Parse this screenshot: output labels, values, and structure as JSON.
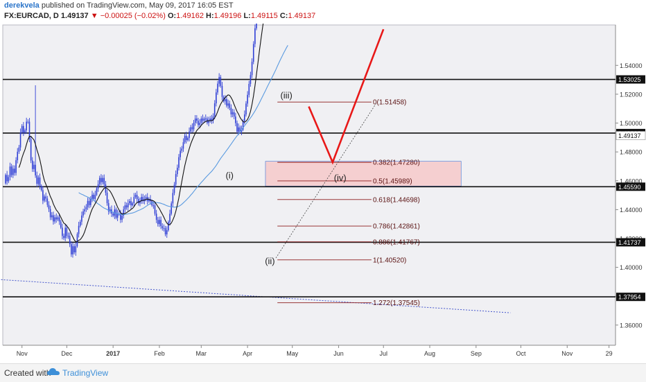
{
  "header": {
    "author": "derekvela",
    "published": " published on TradingView.com, May 09, 2017 16:05 EST",
    "symbol": "FX:EURCAD, D",
    "price": "1.49137",
    "change_arrow": "▼",
    "change": "−0.00025 (−0.02%)",
    "o_label": "O:",
    "o_value": "1.49162",
    "h_label": "H:",
    "h_value": "1.49196",
    "l_label": "L:",
    "l_value": "1.49115",
    "c_label": "C:",
    "c_value": "1.49137"
  },
  "footer": {
    "created_with": "Created with",
    "brand": "TradingView"
  },
  "colors": {
    "bg": "#f0f0f3",
    "candle": "#2f3fd6",
    "sma_fast": "#111111",
    "sma_mid": "#5a9ae0",
    "sma_slow": "#9b30b8",
    "fib": "#8b1a1a",
    "zone": "#f6caca",
    "zone_border": "#3b6fd4",
    "projection": "#e81818",
    "hline": "#111111",
    "trend": "#4455cc"
  },
  "chart_data": {
    "type": "candlestick",
    "symbol": "FX:EURCAD",
    "timeframe": "D",
    "ylim": [
      1.346,
      1.568
    ],
    "yticks": [
      "1.36000",
      "1.38000",
      "1.40000",
      "1.42000",
      "1.44000",
      "1.46000",
      "1.48000",
      "1.50000",
      "1.52000",
      "1.54000"
    ],
    "ytick_values": [
      1.36,
      1.38,
      1.4,
      1.42,
      1.44,
      1.46,
      1.48,
      1.5,
      1.52,
      1.54
    ],
    "xticks": [
      "Nov",
      "Dec",
      "2017",
      "Feb",
      "Mar",
      "Apr",
      "May",
      "Jun",
      "Jul",
      "Aug",
      "Sep",
      "Oct",
      "Nov",
      "29"
    ],
    "xtick_index": [
      11,
      41,
      72,
      103,
      131,
      162,
      192,
      223,
      253,
      284,
      315,
      345,
      376,
      404
    ],
    "horizontal_levels": [
      {
        "label": "1.53025",
        "value": 1.53025
      },
      {
        "label": "1.49308",
        "value": 1.49308
      },
      {
        "label": "1.45590",
        "value": 1.4559
      },
      {
        "label": "1.41737",
        "value": 1.41737
      },
      {
        "label": "1.37954",
        "value": 1.37954
      }
    ],
    "last_price": {
      "label": "1.49137",
      "value": 1.49137
    },
    "fib_levels": [
      {
        "label": "0(1.51458)",
        "value": 1.51458
      },
      {
        "label": "0.382(1.47280)",
        "value": 1.4728
      },
      {
        "label": "0.5(1.45989)",
        "value": 1.45989
      },
      {
        "label": "0.618(1.44698)",
        "value": 1.44698
      },
      {
        "label": "0.786(1.42861)",
        "value": 1.42861
      },
      {
        "label": "0.886(1.41767)",
        "value": 1.41767
      },
      {
        "label": "1(1.40520)",
        "value": 1.4052
      },
      {
        "label": "1.272(1.37545)",
        "value": 1.37545
      }
    ],
    "fib_start_index": 182,
    "fib_end_index": 245,
    "zone": {
      "x0": 174,
      "x1": 305,
      "y0": 1.4735,
      "y1": 1.4563
    },
    "wave_labels": [
      {
        "text": "(i)",
        "x": 150,
        "y": 1.4615
      },
      {
        "text": "(ii)",
        "x": 177,
        "y": 1.4022
      },
      {
        "text": "(iii)",
        "x": 188,
        "y": 1.517
      },
      {
        "text": "(iv)",
        "x": 224,
        "y": 1.46
      }
    ],
    "projection": [
      {
        "x": 203,
        "y": 1.5115
      },
      {
        "x": 219,
        "y": 1.4728
      },
      {
        "x": 253,
        "y": 1.565
      }
    ],
    "diagonal": [
      {
        "x": 181,
        "y": 1.4065
      },
      {
        "x": 248,
        "y": 1.5135
      }
    ],
    "trendline": [
      {
        "x": -3,
        "y": 1.3915
      },
      {
        "x": 338,
        "y": 1.3685
      }
    ],
    "start": 1.4582,
    "returns": [
      0.004,
      -0.003,
      0.002,
      0.005,
      -0.004,
      0.003,
      -0.002,
      0.006,
      0.004,
      0.002,
      0.007,
      0.003,
      -0.003,
      0.001,
      0.004,
      0.0,
      -0.008,
      -0.01,
      -0.004,
      0.002,
      -0.005,
      -0.004,
      0.003,
      -0.004,
      -0.002,
      -0.005,
      0.002,
      -0.001,
      -0.003,
      -0.002,
      -0.004,
      0.001,
      -0.003,
      0.002,
      -0.001,
      0.001,
      -0.002,
      -0.003,
      -0.004,
      -0.001,
      0.005,
      -0.004,
      0.0,
      -0.004,
      -0.005,
      0.004,
      -0.003,
      0.003,
      0.006,
      0.004,
      0.002,
      0.003,
      0.002,
      0.001,
      0.001,
      0.003,
      -0.002,
      0.003,
      0.002,
      -0.002,
      0.002,
      0.003,
      0.002,
      0.003,
      -0.002,
      0.002,
      -0.003,
      -0.004,
      -0.005,
      -0.004,
      0.001,
      -0.002,
      -0.001,
      0.003,
      -0.004,
      0.002,
      0.0,
      -0.003,
      0.002,
      0.003,
      0.002,
      -0.001,
      0.002,
      0.001,
      -0.002,
      0.001,
      0.003,
      0.001,
      -0.002,
      -0.002,
      0.001,
      0.002,
      -0.002,
      0.001,
      0.001,
      -0.002,
      0.001,
      -0.001,
      -0.002,
      0.0,
      -0.004,
      -0.003,
      -0.002,
      0.002,
      -0.003,
      -0.001,
      0.0,
      -0.003,
      0.002,
      0.004,
      0.004,
      0.005,
      0.005,
      0.004,
      0.005,
      0.003,
      0.005,
      0.003,
      0.001,
      0.003,
      0.003,
      -0.002,
      0.001,
      0.003,
      0.002,
      -0.001,
      0.003,
      0.002,
      -0.001,
      -0.002,
      0.001,
      0.002,
      -0.001,
      0.001,
      0.0,
      -0.002,
      0.001,
      0.001,
      -0.001,
      0.002,
      0.006,
      0.005,
      0.004,
      0.003,
      -0.004,
      -0.005,
      -0.002,
      0.001,
      -0.003,
      0.001,
      -0.002,
      -0.003,
      0.001,
      -0.002,
      -0.003,
      -0.004,
      0.002,
      -0.002,
      0.001,
      0.004,
      0.003,
      0.005,
      0.004,
      0.005,
      0.004,
      0.006,
      0.008,
      0.007,
      0.005,
      0.006,
      0.004,
      0.002,
      0.003,
      -0.001,
      0.003,
      0.002,
      0.002,
      -0.001,
      -0.002,
      0.0,
      0.004,
      0.001,
      0.005,
      -0.001,
      -0.003,
      -0.004,
      0.001,
      -0.002,
      -0.003,
      -0.001
    ]
  }
}
